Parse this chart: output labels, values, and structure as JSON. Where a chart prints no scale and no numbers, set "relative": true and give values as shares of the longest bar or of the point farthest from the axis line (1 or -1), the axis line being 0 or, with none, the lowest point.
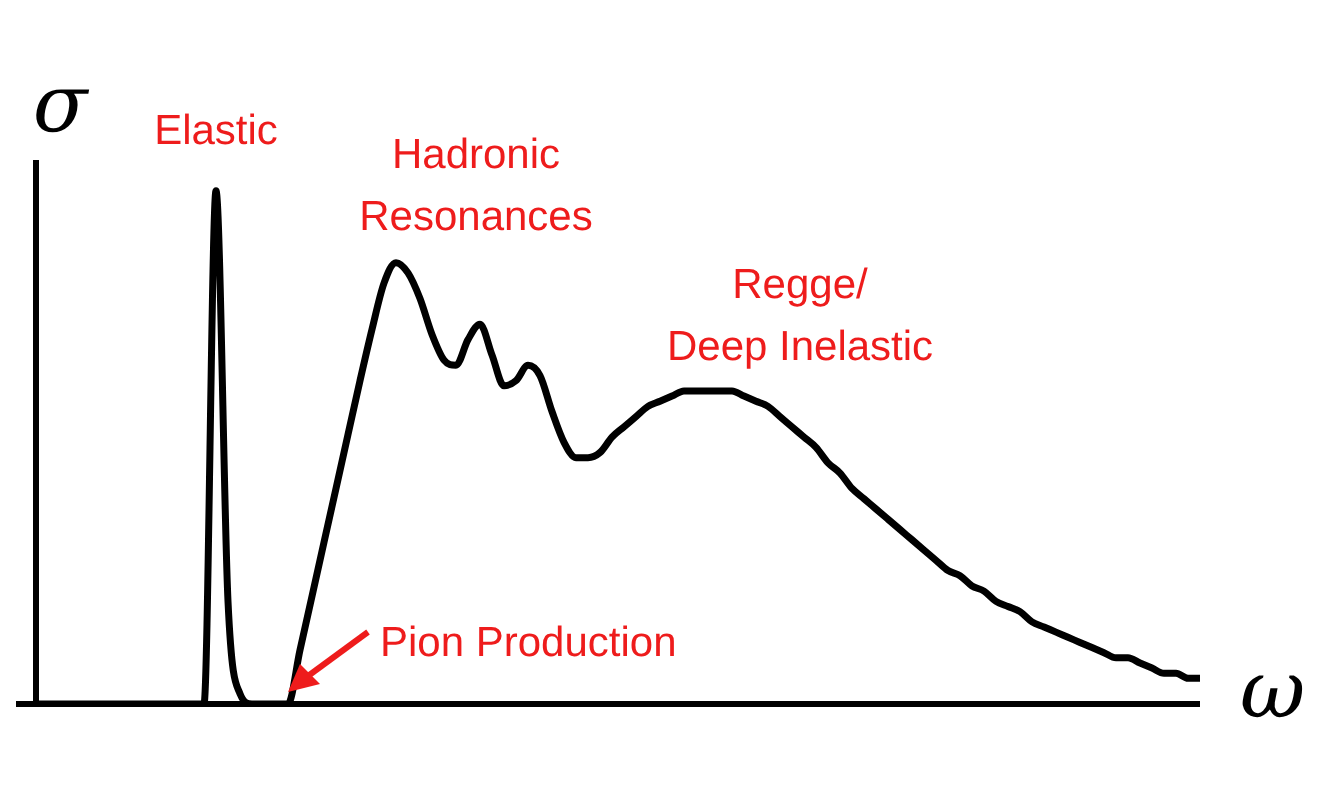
{
  "chart_data": {
    "type": "line",
    "relative": true,
    "xlabel": "ω",
    "ylabel": "σ",
    "color": "#000000",
    "marker": "none",
    "legend": false,
    "tick_labels": false,
    "annotations": [
      "Elastic",
      "Hadronic\nResonances",
      "Regge/\nDeep Inelastic",
      "Pion Production"
    ],
    "categories": [
      null,
      null,
      null,
      null,
      null,
      null,
      null,
      null,
      null,
      null,
      null,
      null,
      null,
      null,
      null,
      null,
      null,
      null,
      null,
      null,
      null,
      null,
      null,
      null,
      null,
      null,
      null,
      null,
      null,
      null,
      null,
      null,
      null,
      null,
      null,
      null,
      null,
      null,
      null,
      null,
      null,
      null,
      null,
      null,
      null,
      null,
      null,
      null,
      null,
      null,
      null,
      null,
      null,
      null,
      null,
      null,
      null,
      null,
      null,
      null,
      null,
      null,
      null,
      null,
      null,
      null,
      null,
      null,
      null,
      null,
      null,
      null,
      null,
      null,
      null,
      null,
      null,
      null,
      null,
      null,
      null,
      null,
      null,
      null,
      null,
      null,
      null,
      null,
      null,
      null,
      null,
      null,
      null,
      null,
      null,
      null,
      null,
      null
    ],
    "values": [
      0,
      0,
      0,
      0,
      0,
      0,
      0,
      0,
      0,
      0,
      0,
      0,
      0,
      0,
      0,
      1,
      0.2,
      0.02,
      0,
      0,
      0,
      0,
      0.105,
      0.21,
      0.315,
      0.42,
      0.525,
      0.63,
      0.73,
      0.82,
      0.86,
      0.84,
      0.79,
      0.72,
      0.67,
      0.66,
      0.71,
      0.74,
      0.68,
      0.62,
      0.63,
      0.66,
      0.64,
      0.57,
      0.51,
      0.48,
      0.48,
      0.49,
      0.52,
      0.54,
      0.56,
      0.58,
      0.59,
      0.6,
      0.61,
      0.61,
      0.61,
      0.61,
      0.61,
      0.6,
      0.59,
      0.58,
      0.56,
      0.54,
      0.52,
      0.5,
      0.47,
      0.45,
      0.42,
      0.4,
      0.38,
      0.36,
      0.34,
      0.32,
      0.3,
      0.28,
      0.26,
      0.25,
      0.23,
      0.22,
      0.2,
      0.19,
      0.18,
      0.16,
      0.15,
      0.14,
      0.13,
      0.12,
      0.11,
      0.1,
      0.09,
      0.09,
      0.08,
      0.07,
      0.06,
      0.06,
      0.05,
      0.05
    ]
  }
}
